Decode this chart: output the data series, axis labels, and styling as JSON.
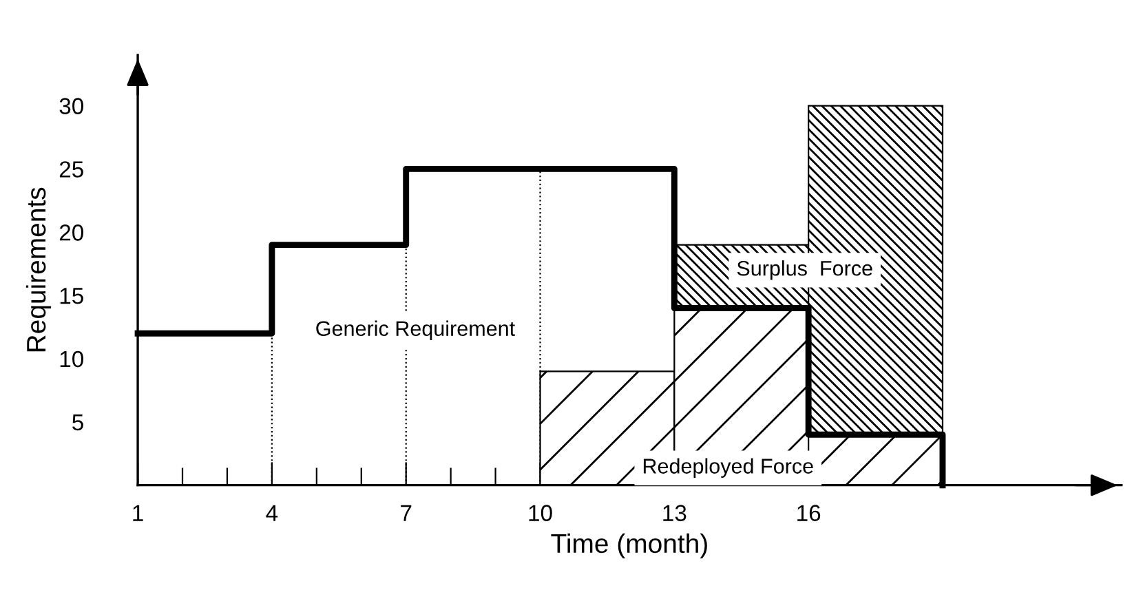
{
  "chart_data": {
    "type": "bar",
    "stacked": true,
    "xlabel": "Time (month)",
    "ylabel": "Requirements",
    "x": [
      11.5,
      14.5,
      17.5
    ],
    "series": [
      {
        "color": "#000000",
        "values": [
          9,
          14,
          4
        ]
      },
      {
        "color": "#000000",
        "values": [
          null,
          5,
          26
        ]
      },
      {
        "type": "step",
        "color": "#000000",
        "x": [
          1,
          4,
          7,
          13,
          16,
          19
        ],
        "values": [
          12,
          19,
          25,
          14,
          4,
          0
        ]
      }
    ],
    "xlim": [
      1,
      23
    ],
    "ylim": [
      0,
      34
    ],
    "xticks": [
      1,
      {
        "value": 2,
        "label": null
      },
      {
        "value": 3,
        "label": null
      },
      4,
      {
        "value": 5,
        "label": null
      },
      {
        "value": 6,
        "label": null
      },
      7,
      {
        "value": 8,
        "label": null
      },
      {
        "value": 9,
        "label": null
      },
      10,
      {
        "value": 11,
        "label": null
      },
      {
        "value": 12,
        "label": null
      },
      13,
      {
        "value": 14,
        "label": null
      },
      {
        "value": 15,
        "label": null
      },
      16,
      {
        "value": 17,
        "label": null
      },
      {
        "value": 18,
        "label": null
      }
    ],
    "yticks": [
      5,
      10,
      15,
      20,
      25,
      30
    ],
    "ref_lines": [
      {
        "axis": "x",
        "value": 4,
        "line_style": "dotted"
      },
      {
        "axis": "x",
        "value": 7,
        "line_style": "dotted"
      },
      {
        "axis": "x",
        "value": 10,
        "line_style": "dotted"
      }
    ],
    "annotations": [
      "Generic Requirement",
      "Surplus  Force",
      "Redeployed Force"
    ],
    "grid": false,
    "legend": false
  }
}
